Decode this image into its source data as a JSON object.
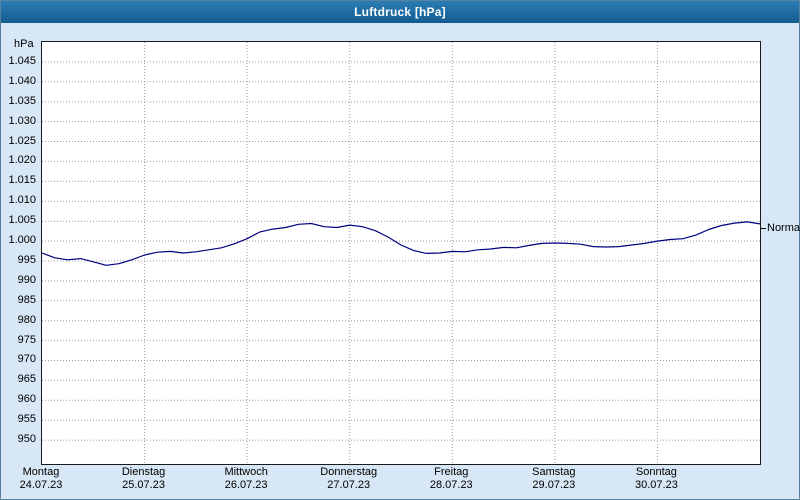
{
  "window": {
    "title": "Luftdruck [hPa]"
  },
  "chart_data": {
    "type": "line",
    "title": "Luftdruck [hPa]",
    "y_unit": "hPa",
    "ylabel": "hPa",
    "xlabel": "",
    "ylim": [
      944,
      1050
    ],
    "grid": "dotted",
    "legend_position": "none",
    "yticks": [
      {
        "value": 1045,
        "label": "1.045"
      },
      {
        "value": 1040,
        "label": "1.040"
      },
      {
        "value": 1035,
        "label": "1.035"
      },
      {
        "value": 1030,
        "label": "1.030"
      },
      {
        "value": 1025,
        "label": "1.025"
      },
      {
        "value": 1020,
        "label": "1.020"
      },
      {
        "value": 1015,
        "label": "1.015"
      },
      {
        "value": 1010,
        "label": "1.010"
      },
      {
        "value": 1005,
        "label": "1.005"
      },
      {
        "value": 1000,
        "label": "1.000"
      },
      {
        "value": 995,
        "label": "995"
      },
      {
        "value": 990,
        "label": "990"
      },
      {
        "value": 985,
        "label": "985"
      },
      {
        "value": 980,
        "label": "980"
      },
      {
        "value": 975,
        "label": "975"
      },
      {
        "value": 970,
        "label": "970"
      },
      {
        "value": 965,
        "label": "965"
      },
      {
        "value": 960,
        "label": "960"
      },
      {
        "value": 955,
        "label": "955"
      },
      {
        "value": 950,
        "label": "950"
      }
    ],
    "x_axis": {
      "total_hours": 168,
      "days": [
        {
          "name": "Montag",
          "date": "24.07.23"
        },
        {
          "name": "Dienstag",
          "date": "25.07.23"
        },
        {
          "name": "Mittwoch",
          "date": "26.07.23"
        },
        {
          "name": "Donnerstag",
          "date": "27.07.23"
        },
        {
          "name": "Freitag",
          "date": "28.07.23"
        },
        {
          "name": "Samstag",
          "date": "29.07.23"
        },
        {
          "name": "Sonntag",
          "date": "30.07.23"
        }
      ]
    },
    "normal": {
      "label": "Normal",
      "value": 1003
    },
    "series": [
      {
        "name": "Luftdruck",
        "color": "#00007f",
        "interval_hours": 3,
        "values": [
          997.0,
          995.8,
          995.3,
          995.6,
          994.8,
          993.9,
          994.3,
          995.3,
          996.5,
          997.2,
          997.4,
          997.0,
          997.3,
          997.8,
          998.3,
          999.3,
          1000.6,
          1002.3,
          1003.0,
          1003.4,
          1004.2,
          1004.4,
          1003.6,
          1003.4,
          1004.0,
          1003.6,
          1002.6,
          1001.0,
          999.0,
          997.6,
          996.9,
          997.0,
          997.4,
          997.3,
          997.8,
          998.0,
          998.4,
          998.3,
          998.9,
          999.4,
          999.5,
          999.4,
          999.2,
          998.6,
          998.5,
          998.6,
          999.0,
          999.4,
          1000.0,
          1000.4,
          1000.6,
          1001.5,
          1002.9,
          1003.9,
          1004.5,
          1004.8,
          1004.3
        ]
      }
    ]
  }
}
